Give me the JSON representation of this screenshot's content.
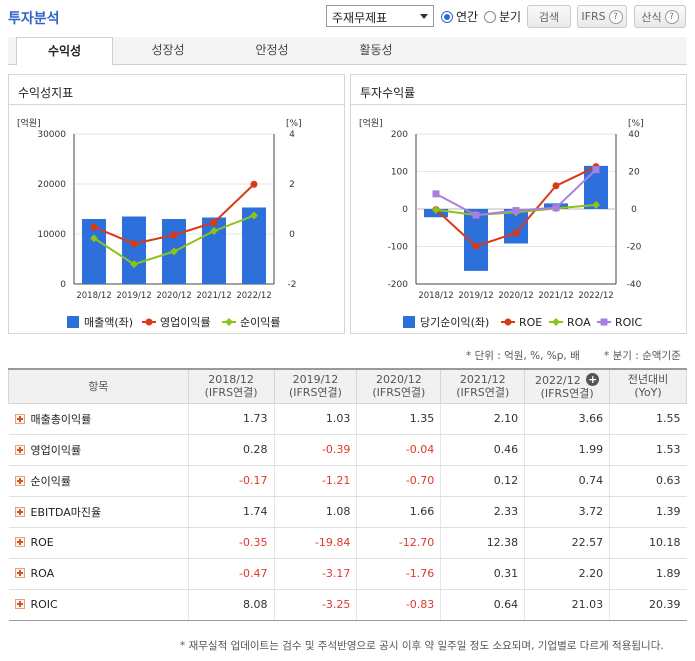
{
  "header": {
    "title": "투자분석",
    "select_value": "주재무제표",
    "radio_annual": "연간",
    "radio_quarter": "분기",
    "search_label": "검색",
    "ifrs_label": "IFRS",
    "formula_label": "산식"
  },
  "tabs": [
    "수익성",
    "성장성",
    "안정성",
    "활동성"
  ],
  "left_panel": {
    "title": "수익성지표"
  },
  "right_panel": {
    "title": "투자수익률"
  },
  "chart_data": [
    {
      "type": "bar",
      "title": "수익성지표",
      "categories": [
        "2018/12",
        "2019/12",
        "2020/12",
        "2021/12",
        "2022/12"
      ],
      "ylabel_left": "[억원]",
      "ylabel_right": "[%]",
      "ylim_left": [
        0,
        30000
      ],
      "ylim_right": [
        -2,
        4
      ],
      "yticks_left": [
        "30000",
        "20000",
        "10000",
        "0"
      ],
      "yticks_right": [
        "4",
        "2",
        "0",
        "-2"
      ],
      "series": [
        {
          "name": "매출액(좌)",
          "type": "bar",
          "axis": "left",
          "color": "#2d6fdb",
          "values": [
            13000,
            13500,
            13000,
            13300,
            15300
          ]
        },
        {
          "name": "영업이익률",
          "type": "line",
          "axis": "right",
          "color": "#d63b16",
          "values": [
            0.28,
            -0.39,
            -0.04,
            0.46,
            1.99
          ]
        },
        {
          "name": "순이익률",
          "type": "line",
          "axis": "right",
          "color": "#8cc21c",
          "values": [
            -0.17,
            -1.21,
            -0.7,
            0.12,
            0.74
          ]
        }
      ]
    },
    {
      "type": "bar",
      "title": "투자수익률",
      "categories": [
        "2018/12",
        "2019/12",
        "2020/12",
        "2021/12",
        "2022/12"
      ],
      "ylabel_left": "[억원]",
      "ylabel_right": "[%]",
      "ylim_left": [
        -200,
        200
      ],
      "ylim_right": [
        -40,
        40
      ],
      "yticks_left": [
        "200",
        "100",
        "0",
        "-100",
        "-200"
      ],
      "yticks_right": [
        "40",
        "20",
        "0",
        "-20",
        "-40"
      ],
      "series": [
        {
          "name": "당기순이익(좌)",
          "type": "bar",
          "axis": "left",
          "color": "#2d6fdb",
          "values": [
            -22,
            -165,
            -92,
            15,
            115
          ]
        },
        {
          "name": "ROE",
          "type": "line",
          "axis": "right",
          "color": "#d63b16",
          "values": [
            -0.35,
            -19.84,
            -12.7,
            12.38,
            22.57
          ]
        },
        {
          "name": "ROA",
          "type": "line",
          "axis": "right",
          "color": "#8cc21c",
          "values": [
            -0.47,
            -3.17,
            -1.76,
            0.31,
            2.2
          ]
        },
        {
          "name": "ROIC",
          "type": "line",
          "axis": "right",
          "color": "#a97ee0",
          "values": [
            8.08,
            -3.25,
            -0.83,
            0.64,
            21.03
          ]
        }
      ]
    }
  ],
  "notes": {
    "unit": "* 단위 : 억원, %, %p, 배",
    "quarter": "* 분기 : 순액기준"
  },
  "table": {
    "col_header_item": "항목",
    "columns": [
      {
        "period": "2018/12",
        "basis": "(IFRS연결)"
      },
      {
        "period": "2019/12",
        "basis": "(IFRS연결)"
      },
      {
        "period": "2020/12",
        "basis": "(IFRS연결)"
      },
      {
        "period": "2021/12",
        "basis": "(IFRS연결)"
      },
      {
        "period": "2022/12",
        "basis": "(IFRS연결)"
      }
    ],
    "yoy_header": "전년대비",
    "yoy_sub": "(YoY)",
    "rows": [
      {
        "label": "매출총이익률",
        "values": [
          "1.73",
          "1.03",
          "1.35",
          "2.10",
          "3.66"
        ],
        "yoy": "1.55"
      },
      {
        "label": "영업이익률",
        "values": [
          "0.28",
          "-0.39",
          "-0.04",
          "0.46",
          "1.99"
        ],
        "yoy": "1.53"
      },
      {
        "label": "순이익률",
        "values": [
          "-0.17",
          "-1.21",
          "-0.70",
          "0.12",
          "0.74"
        ],
        "yoy": "0.63"
      },
      {
        "label": "EBITDA마진율",
        "values": [
          "1.74",
          "1.08",
          "1.66",
          "2.33",
          "3.72"
        ],
        "yoy": "1.39"
      },
      {
        "label": "ROE",
        "values": [
          "-0.35",
          "-19.84",
          "-12.70",
          "12.38",
          "22.57"
        ],
        "yoy": "10.18"
      },
      {
        "label": "ROA",
        "values": [
          "-0.47",
          "-3.17",
          "-1.76",
          "0.31",
          "2.20"
        ],
        "yoy": "1.89"
      },
      {
        "label": "ROIC",
        "values": [
          "8.08",
          "-3.25",
          "-0.83",
          "0.64",
          "21.03"
        ],
        "yoy": "20.39"
      }
    ]
  },
  "footer": "* 재무실적 업데이트는 검수 및 주석반영으로 공시 이후 약 일주일 정도 소요되며, 기업별로 다르게 적용됩니다."
}
